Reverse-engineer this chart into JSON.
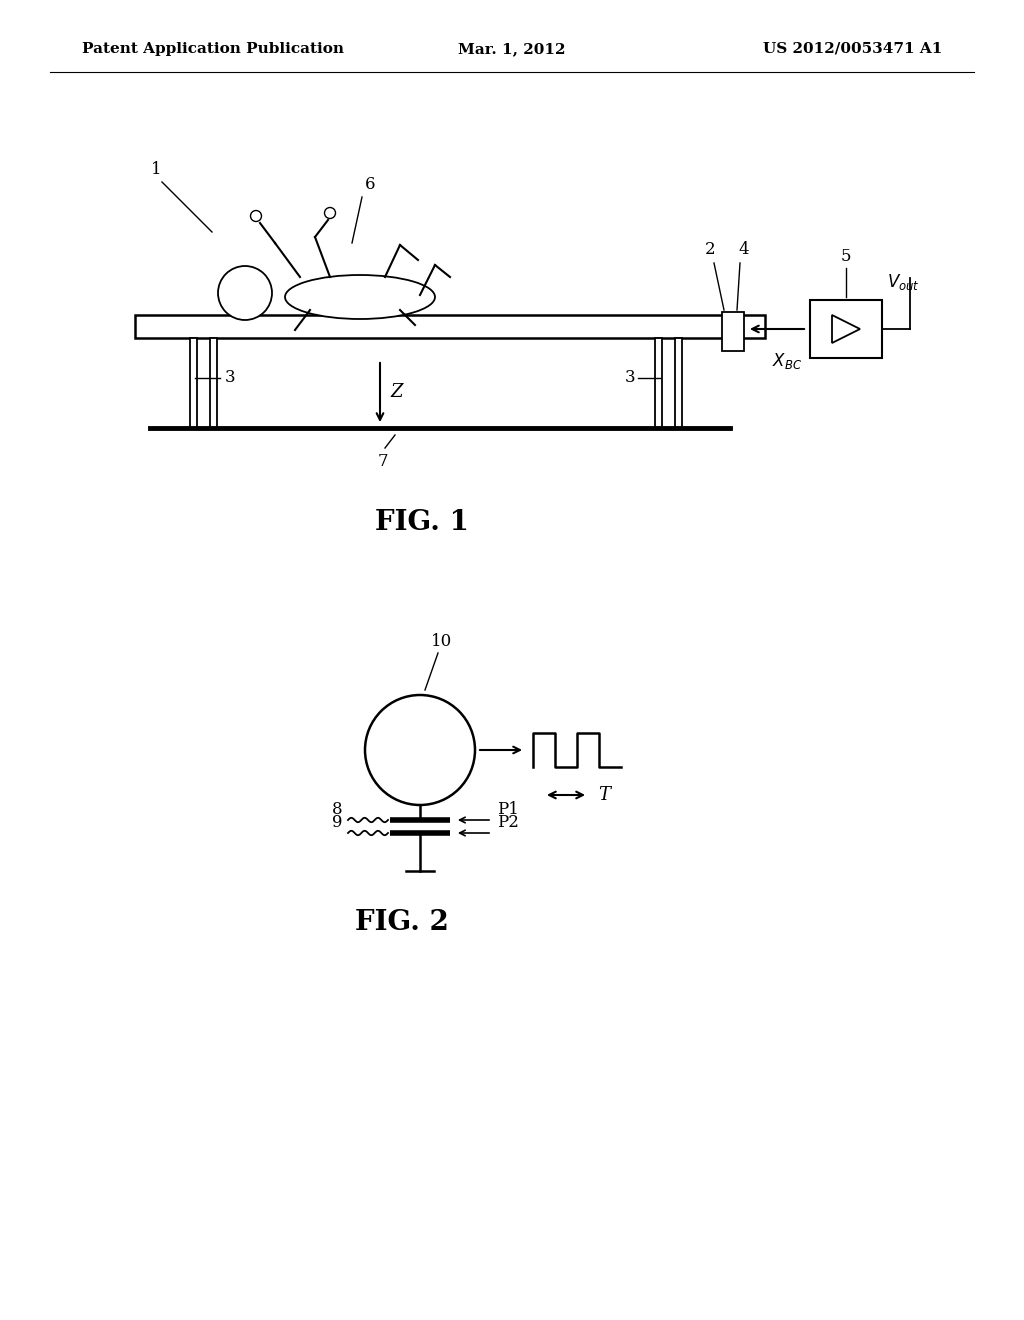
{
  "bg_color": "#ffffff",
  "header_left": "Patent Application Publication",
  "header_center": "Mar. 1, 2012",
  "header_right": "US 2012/0053471 A1",
  "header_fontsize": 11,
  "fig1_label": "FIG. 1",
  "fig2_label": "FIG. 2",
  "fig1_label_fontsize": 20,
  "fig2_label_fontsize": 20,
  "page_width": 10.24,
  "page_height": 13.2
}
